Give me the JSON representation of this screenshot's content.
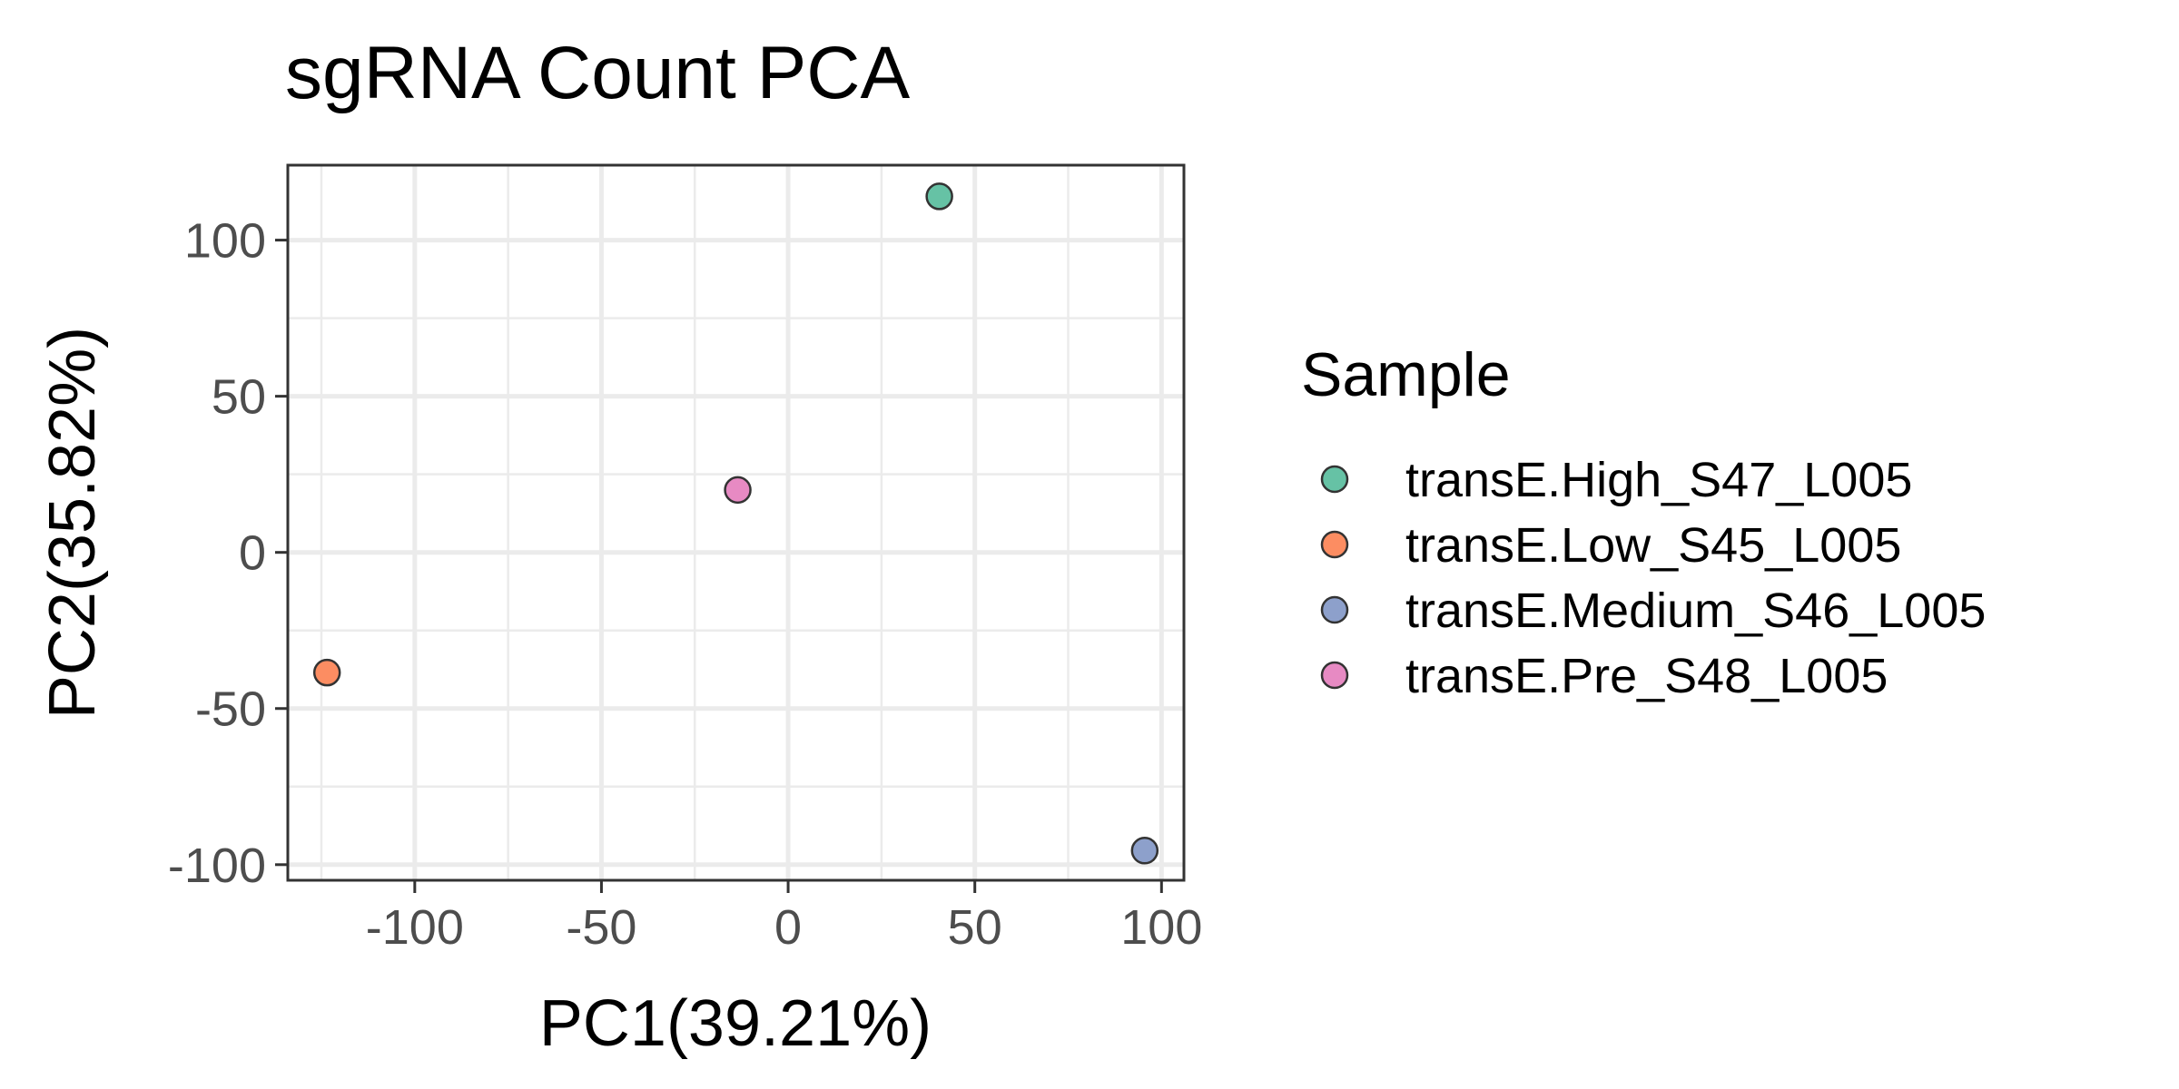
{
  "chart_data": {
    "type": "scatter",
    "title": "sgRNA Count PCA",
    "xlabel": "PC1(39.21%)",
    "ylabel": "PC2(35.82%)",
    "xlim": [
      -134,
      106
    ],
    "ylim": [
      -105,
      124
    ],
    "x_ticks": [
      -100,
      -50,
      0,
      50,
      100
    ],
    "x_tick_labels": [
      "-100",
      "-50",
      "0",
      "50",
      "100"
    ],
    "y_ticks": [
      -100,
      -50,
      0,
      50,
      100
    ],
    "y_tick_labels": [
      "-100",
      "-50",
      "0",
      "50",
      "100"
    ],
    "grid": true,
    "legend": {
      "title": "Sample",
      "placement": "right"
    },
    "series": [
      {
        "name": "transE.High_S47_L005",
        "color": "#66C2A5",
        "x": [
          40.5
        ],
        "y": [
          114
        ]
      },
      {
        "name": "transE.Low_S45_L005",
        "color": "#FC8D62",
        "x": [
          -123.5
        ],
        "y": [
          -38.5
        ]
      },
      {
        "name": "transE.Medium_S46_L005",
        "color": "#8DA0CB",
        "x": [
          95.5
        ],
        "y": [
          -95.5
        ]
      },
      {
        "name": "transE.Pre_S48_L005",
        "color": "#E78AC3",
        "x": [
          -13.5
        ],
        "y": [
          20
        ]
      }
    ]
  }
}
